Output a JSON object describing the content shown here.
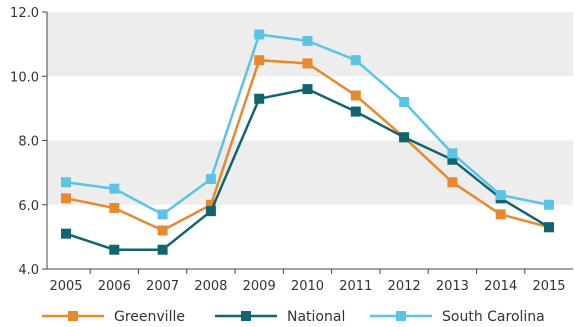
{
  "chart_data": {
    "type": "line",
    "title": "",
    "xlabel": "",
    "ylabel": "",
    "categories": [
      "2005",
      "2006",
      "2007",
      "2008",
      "2009",
      "2010",
      "2011",
      "2012",
      "2013",
      "2014",
      "2015"
    ],
    "ylim": [
      4.0,
      12.0
    ],
    "yticks": [
      "4.0",
      "6.0",
      "8.0",
      "10.0",
      "12.0"
    ],
    "grid": "alternating horizontal bands",
    "legend_position": "bottom",
    "series": [
      {
        "name": "Greenville",
        "color": "#E8892B",
        "values": [
          6.2,
          5.9,
          5.2,
          6.0,
          10.5,
          10.4,
          9.4,
          8.1,
          6.7,
          5.7,
          5.3
        ]
      },
      {
        "name": "National",
        "color": "#11656F",
        "values": [
          5.1,
          4.6,
          4.6,
          5.8,
          9.3,
          9.6,
          8.9,
          8.1,
          7.4,
          6.2,
          5.3
        ]
      },
      {
        "name": "South Carolina",
        "color": "#5BC4E5",
        "values": [
          6.7,
          6.5,
          5.7,
          6.8,
          11.3,
          11.1,
          10.5,
          9.2,
          7.6,
          6.3,
          6.0
        ]
      }
    ]
  }
}
